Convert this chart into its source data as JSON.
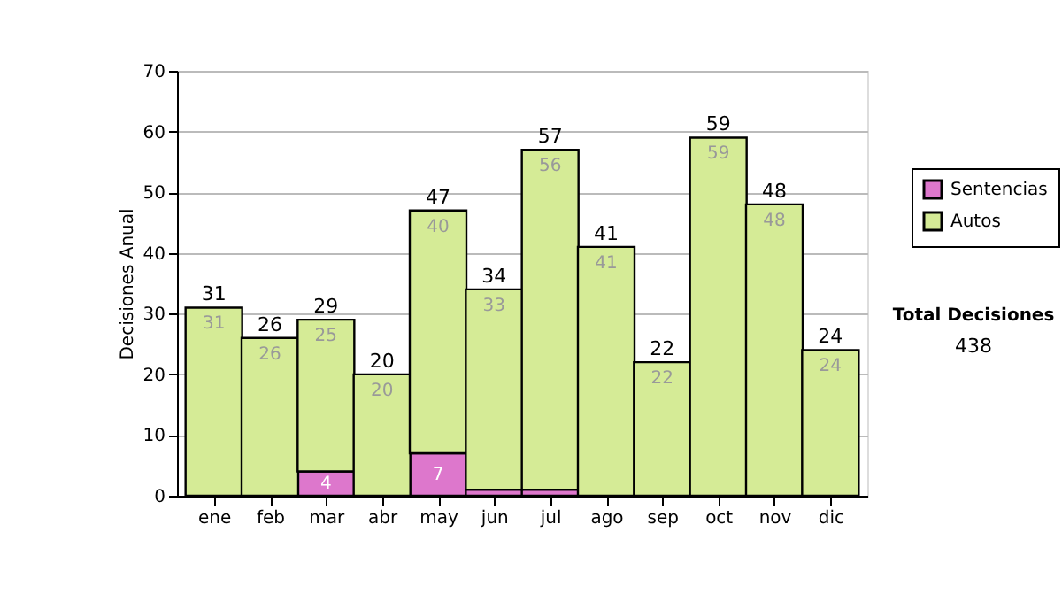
{
  "chart_data": {
    "type": "bar",
    "stacked": true,
    "ylabel": "Decisiones Anual",
    "categories": [
      "ene",
      "feb",
      "mar",
      "abr",
      "may",
      "jun",
      "jul",
      "ago",
      "sep",
      "oct",
      "nov",
      "dic"
    ],
    "series": [
      {
        "name": "Sentencias",
        "color": "#dd77cc",
        "values": [
          null,
          null,
          4,
          null,
          7,
          1,
          1,
          null,
          null,
          null,
          null,
          null
        ],
        "value_labels": [
          null,
          null,
          "4",
          null,
          "7",
          null,
          null,
          null,
          null,
          null,
          null,
          null
        ]
      },
      {
        "name": "Autos",
        "color": "#d5eb96",
        "values": [
          31,
          26,
          25,
          20,
          40,
          33,
          56,
          41,
          22,
          59,
          48,
          24
        ],
        "value_labels": [
          "31",
          "26",
          "25",
          "20",
          "40",
          "33",
          "56",
          "41",
          "22",
          "59",
          "48",
          "24"
        ]
      }
    ],
    "totals": [
      "31",
      "26",
      "29",
      "20",
      "47",
      "34",
      "57",
      "41",
      "22",
      "59",
      "48",
      "24"
    ],
    "ylim": [
      0,
      70
    ],
    "yticks": [
      0,
      10,
      20,
      30,
      40,
      50,
      60,
      70
    ],
    "grid": "y",
    "legend": "top right",
    "annotations": [
      "Total Decisiones",
      "438"
    ]
  }
}
